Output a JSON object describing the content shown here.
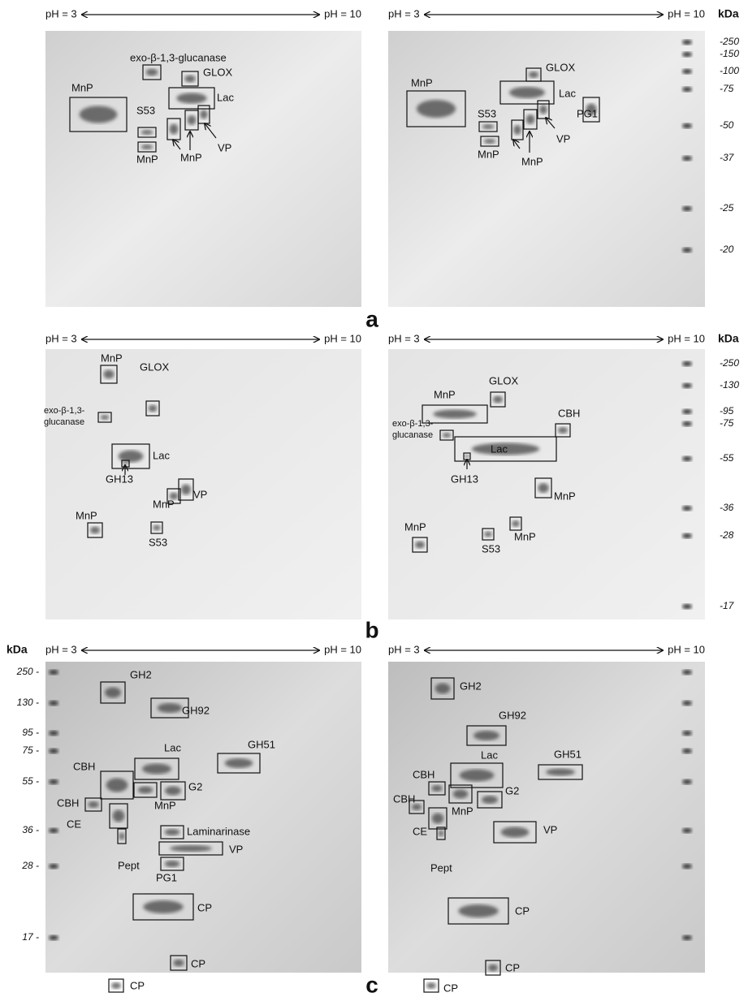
{
  "panels": [
    {
      "letter": "a",
      "kda_title": "kDa",
      "kda_ticks": [
        "-250",
        "-150",
        "-100",
        "-75",
        "-50",
        "-37",
        "-25",
        "-20"
      ],
      "gels": [
        {
          "ph_low": "pH = 3",
          "ph_high": "pH = 10",
          "labels": [
            "exo-β-1,3-glucanase",
            "GLOX",
            "MnP",
            "Lac",
            "S53",
            "MnP",
            "MnP",
            "VP"
          ]
        },
        {
          "ph_low": "pH = 3",
          "ph_high": "pH = 10",
          "labels": [
            "MnP",
            "GLOX",
            "Lac",
            "S53",
            "MnP",
            "MnP",
            "VP",
            "PG1"
          ]
        }
      ]
    },
    {
      "letter": "b",
      "kda_title": "kDa",
      "kda_ticks": [
        "-250",
        "-130",
        "-95",
        "-75",
        "-55",
        "-36",
        "-28",
        "-17"
      ],
      "gels": [
        {
          "ph_low": "pH = 3",
          "ph_high": "pH = 10",
          "labels": [
            "MnP",
            "GLOX",
            "exo-β-1,3-",
            "glucanase",
            "Lac",
            "GH13",
            "MnP",
            "VP",
            "MnP",
            "S53"
          ]
        },
        {
          "ph_low": "pH = 3",
          "ph_high": "pH = 10",
          "labels": [
            "MnP",
            "GLOX",
            "CBH",
            "exo-β-1,3-",
            "glucanase",
            "Lac",
            "GH13",
            "MnP",
            "MnP",
            "MnP",
            "S53"
          ]
        }
      ]
    },
    {
      "letter": "c",
      "kda_title": "kDa",
      "kda_ticks": [
        "250 -",
        "130 -",
        "95 -",
        "75 -",
        "55 -",
        "36 -",
        "28 -",
        "17 -"
      ],
      "gels": [
        {
          "ph_low": "pH = 3",
          "ph_high": "pH = 10",
          "labels": [
            "GH2",
            "GH92",
            "Lac",
            "GH51",
            "CBH",
            "G2",
            "CBH",
            "MnP",
            "Laminarinase",
            "CE",
            "VP",
            "Pept",
            "PG1",
            "CP",
            "CP",
            "CP"
          ]
        },
        {
          "ph_low": "pH = 3",
          "ph_high": "pH = 10",
          "labels": [
            "GH2",
            "GH92",
            "Lac",
            "GH51",
            "CBH",
            "CBH",
            "G2",
            "MnP",
            "CE",
            "VP",
            "Pept",
            "CP",
            "CP",
            "CP"
          ]
        }
      ]
    }
  ]
}
